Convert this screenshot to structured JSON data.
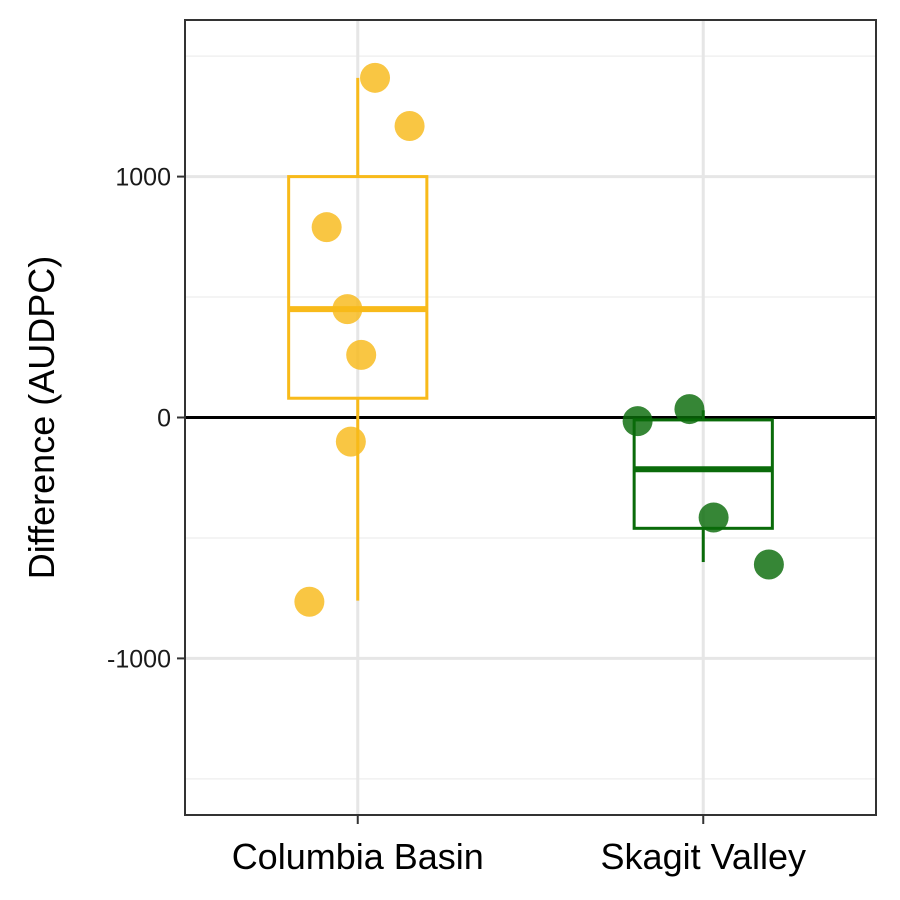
{
  "chart_data": {
    "type": "boxplot",
    "title": "",
    "xlabel": "",
    "ylabel": "Difference (AUDPC)",
    "ylim": [
      -1650,
      1650
    ],
    "yticks": [
      -1000,
      0,
      1000
    ],
    "ytick_labels": [
      "-1000",
      "0",
      "1000"
    ],
    "minor_gridlines": [
      -1500,
      -500,
      500,
      1500
    ],
    "grid": true,
    "reference_line": 0,
    "categories": [
      "Columbia Basin",
      "Skagit Valley"
    ],
    "series": [
      {
        "category": "Columbia Basin",
        "color": "#F8BA1A",
        "stats": {
          "min": -760,
          "q1": 80,
          "median": 450,
          "q3": 1000,
          "max": 1410
        },
        "points": [
          {
            "value": 1410,
            "jitter": 0.05
          },
          {
            "value": 1210,
            "jitter": 0.15
          },
          {
            "value": 790,
            "jitter": -0.09
          },
          {
            "value": 450,
            "jitter": -0.03
          },
          {
            "value": 260,
            "jitter": 0.01
          },
          {
            "value": -100,
            "jitter": -0.02
          },
          {
            "value": -765,
            "jitter": -0.14
          }
        ]
      },
      {
        "category": "Skagit Valley",
        "color": "#0A6B0A",
        "stats": {
          "min": -600,
          "q1": -460,
          "median": -215,
          "q3": -10,
          "max": 30
        },
        "points": [
          {
            "value": 35,
            "jitter": -0.04
          },
          {
            "value": -15,
            "jitter": -0.19
          },
          {
            "value": -415,
            "jitter": 0.03
          },
          {
            "value": -610,
            "jitter": 0.19
          }
        ]
      }
    ]
  }
}
